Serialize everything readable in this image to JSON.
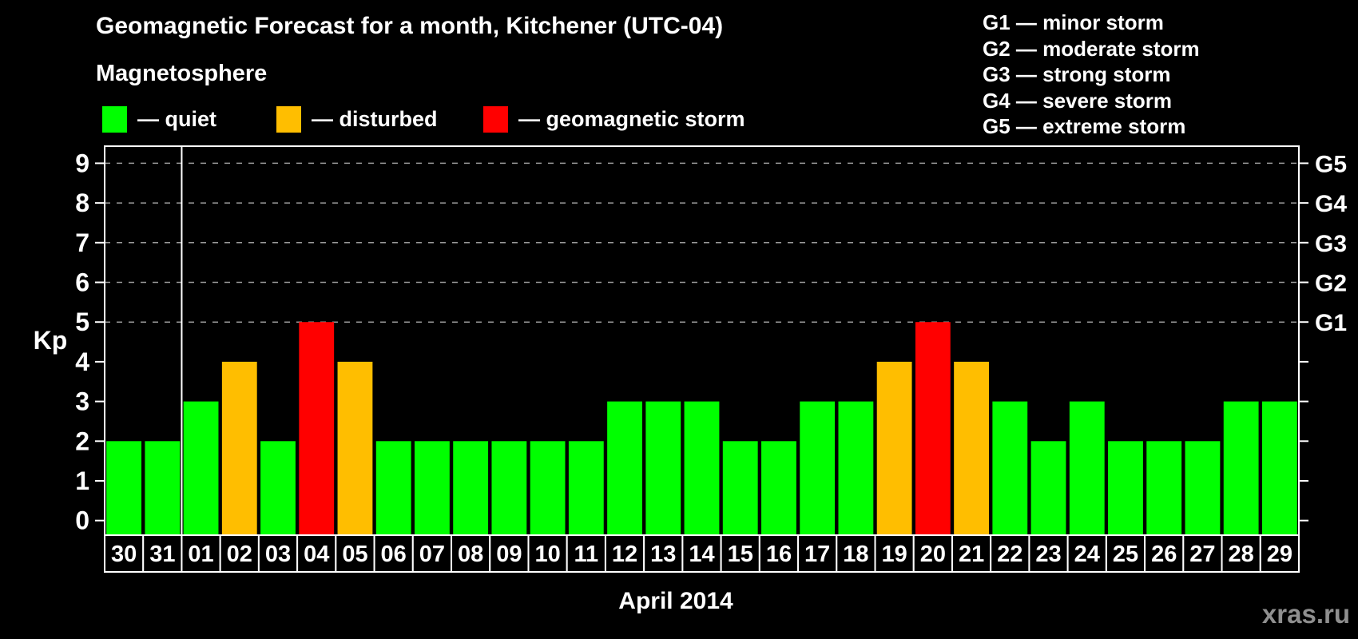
{
  "header": {
    "title": "Geomagnetic Forecast for a month, Kitchener (UTC-04)",
    "subtitle": "Magnetosphere"
  },
  "legend": {
    "items": [
      {
        "label": "— quiet",
        "color": "#00ff00",
        "status": "quiet"
      },
      {
        "label": "— disturbed",
        "color": "#ffbe00",
        "status": "disturbed"
      },
      {
        "label": "— geomagnetic storm",
        "color": "#ff0000",
        "status": "storm"
      }
    ]
  },
  "g_scale_legend": {
    "lines": [
      "G1 — minor storm",
      "G2 — moderate storm",
      "G3 — strong storm",
      "G4 — severe storm",
      "G5 — extreme storm"
    ]
  },
  "chart_data": {
    "type": "bar",
    "title": "Geomagnetic Forecast for a month, Kitchener (UTC-04)",
    "ylabel": "Kp",
    "xlabel": "April 2014",
    "ylim": [
      0,
      9.4
    ],
    "grid": "dashed horizontal at Kp 5-9",
    "legend_position": "top-left",
    "categories": [
      "30",
      "31",
      "01",
      "02",
      "03",
      "04",
      "05",
      "06",
      "07",
      "08",
      "09",
      "10",
      "11",
      "12",
      "13",
      "14",
      "15",
      "16",
      "17",
      "18",
      "19",
      "20",
      "21",
      "22",
      "23",
      "24",
      "25",
      "26",
      "27",
      "28",
      "29"
    ],
    "values": [
      2,
      2,
      3,
      4,
      2,
      5,
      4,
      2,
      2,
      2,
      2,
      2,
      2,
      3,
      3,
      3,
      2,
      2,
      3,
      3,
      4,
      5,
      4,
      3,
      2,
      3,
      2,
      2,
      2,
      3,
      3
    ],
    "statuses": [
      "quiet",
      "quiet",
      "quiet",
      "disturbed",
      "quiet",
      "storm",
      "disturbed",
      "quiet",
      "quiet",
      "quiet",
      "quiet",
      "quiet",
      "quiet",
      "quiet",
      "quiet",
      "quiet",
      "quiet",
      "quiet",
      "quiet",
      "quiet",
      "disturbed",
      "storm",
      "disturbed",
      "quiet",
      "quiet",
      "quiet",
      "quiet",
      "quiet",
      "quiet",
      "quiet",
      "quiet"
    ],
    "status_colors": {
      "quiet": "#00ff00",
      "disturbed": "#ffbe00",
      "storm": "#ff0000"
    },
    "left_ticks": [
      "0",
      "1",
      "2",
      "3",
      "4",
      "5",
      "6",
      "7",
      "8",
      "9"
    ],
    "right_tick_labels": {
      "5": "G1",
      "6": "G2",
      "7": "G3",
      "8": "G4",
      "9": "G5"
    },
    "grid_levels": [
      5,
      6,
      7,
      8,
      9
    ],
    "separator_after_slot": 2
  },
  "footer": {
    "watermark": "xras.ru"
  }
}
